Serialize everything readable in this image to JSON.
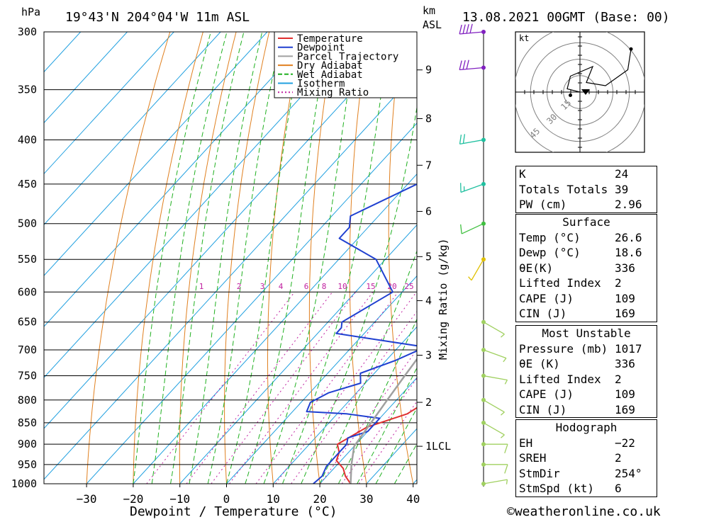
{
  "header": {
    "location": "19°43'N  204°04'W  11m  ASL",
    "datetime": "13.08.2021  00GMT  (Base: 00)",
    "pressure_unit": "hPa",
    "height_unit_1": "km",
    "height_unit_2": "ASL"
  },
  "chart_data": {
    "type": "line",
    "title": "",
    "xlabel": "Dewpoint / Temperature (°C)",
    "ylabel": "hPa",
    "right_axis_label": "Mixing Ratio (g/kg)",
    "xlim": [
      -40,
      40
    ],
    "ylim": [
      1000,
      300
    ],
    "x_ticks": [
      -30,
      -20,
      -10,
      0,
      10,
      20,
      30,
      40
    ],
    "x_tick_labels": [
      "−30",
      "−20",
      "−10",
      "0",
      "10",
      "20",
      "30",
      "40"
    ],
    "pressure_levels": [
      300,
      350,
      400,
      450,
      500,
      550,
      600,
      650,
      700,
      750,
      800,
      850,
      900,
      950,
      1000
    ],
    "height_ticks_km": [
      {
        "label": "9",
        "p": 332
      },
      {
        "label": "8",
        "p": 378
      },
      {
        "label": "7",
        "p": 428
      },
      {
        "label": "6",
        "p": 484
      },
      {
        "label": "5",
        "p": 546
      },
      {
        "label": "4",
        "p": 614
      },
      {
        "label": "3",
        "p": 710
      },
      {
        "label": "2",
        "p": 805
      },
      {
        "label": "1LCL",
        "p": 905
      }
    ],
    "mixing_ratio_labels": [
      "1",
      "2",
      "3",
      "4",
      "6",
      "8",
      "10",
      "15",
      "20",
      "25"
    ],
    "mixing_ratio_values": [
      1,
      2,
      3,
      4,
      6,
      8,
      10,
      15,
      20,
      25
    ],
    "legend": [
      "Temperature",
      "Dewpoint",
      "Parcel Trajectory",
      "Dry Adiabat",
      "Wet Adiabat",
      "Isotherm",
      "Mixing Ratio"
    ],
    "legend_position": "top-center",
    "colors": {
      "temperature": "#e03030",
      "dewpoint": "#2040d0",
      "parcel": "#a0a0a0",
      "dry_adiabat": "#e08020",
      "wet_adiabat": "#20b020",
      "isotherm": "#20a0e0",
      "mixing_ratio": "#c020a0"
    },
    "series": [
      {
        "name": "Temperature",
        "points": [
          [
            26.6,
            1000
          ],
          [
            24,
            980
          ],
          [
            22,
            960
          ],
          [
            19,
            940
          ],
          [
            18,
            920
          ],
          [
            16,
            900
          ],
          [
            19,
            860
          ],
          [
            25,
            830
          ],
          [
            26,
            815
          ],
          [
            27,
            800
          ],
          [
            24,
            780
          ],
          [
            21,
            750
          ],
          [
            18,
            720
          ],
          [
            17,
            700
          ],
          [
            18,
            675
          ],
          [
            20,
            650
          ],
          [
            17,
            620
          ],
          [
            14,
            600
          ],
          [
            11,
            570
          ],
          [
            10,
            545
          ],
          [
            10,
            520
          ],
          [
            15,
            505
          ],
          [
            16,
            480
          ],
          [
            14,
            460
          ],
          [
            13,
            440
          ],
          [
            13,
            420
          ],
          [
            12,
            400
          ],
          [
            10,
            370
          ],
          [
            8,
            345
          ],
          [
            6,
            320
          ],
          [
            4,
            300
          ]
        ]
      },
      {
        "name": "Dewpoint",
        "points": [
          [
            18.6,
            1000
          ],
          [
            19,
            980
          ],
          [
            18,
            955
          ],
          [
            18,
            930
          ],
          [
            18,
            900
          ],
          [
            17,
            885
          ],
          [
            20,
            870
          ],
          [
            20,
            840
          ],
          [
            12,
            830
          ],
          [
            3,
            825
          ],
          [
            2,
            805
          ],
          [
            4,
            785
          ],
          [
            9,
            765
          ],
          [
            7,
            745
          ],
          [
            12,
            720
          ],
          [
            15,
            700
          ],
          [
            16,
            695
          ],
          [
            -6,
            670
          ],
          [
            -6,
            660
          ],
          [
            -7,
            650
          ],
          [
            -2,
            600
          ],
          [
            -12,
            550
          ],
          [
            -24,
            520
          ],
          [
            -24,
            505
          ],
          [
            -26,
            490
          ],
          [
            -18,
            450
          ],
          [
            -18,
            430
          ],
          [
            -18,
            410
          ],
          [
            -20,
            400
          ],
          [
            -9,
            385
          ],
          [
            -20,
            375
          ],
          [
            -6,
            350
          ],
          [
            -6,
            320
          ],
          [
            -10,
            300
          ]
        ]
      },
      {
        "name": "Parcel Trajectory",
        "points": [
          [
            26.6,
            1000
          ],
          [
            23,
            950
          ],
          [
            20,
            905
          ],
          [
            19,
            850
          ],
          [
            18,
            800
          ],
          [
            17,
            750
          ],
          [
            16,
            700
          ],
          [
            14,
            650
          ],
          [
            12,
            600
          ],
          [
            10,
            550
          ],
          [
            8,
            500
          ],
          [
            4,
            450
          ],
          [
            -1,
            400
          ],
          [
            -7,
            350
          ],
          [
            -14,
            300
          ]
        ]
      }
    ]
  },
  "hodograph": {
    "unit_label": "kt",
    "rings": [
      "15",
      "30",
      "45"
    ],
    "trace": [
      [
        0,
        0
      ],
      [
        -8,
        2
      ],
      [
        -6,
        10
      ],
      [
        8,
        16
      ],
      [
        4,
        6
      ],
      [
        16,
        4
      ],
      [
        30,
        14
      ],
      [
        32,
        27
      ]
    ],
    "storm_motion": [
      -6,
      -2
    ]
  },
  "indices": {
    "rows": [
      {
        "label": "K",
        "value": "24"
      },
      {
        "label": "Totals Totals",
        "value": "39"
      },
      {
        "label": "PW (cm)",
        "value": "2.96"
      }
    ]
  },
  "surface": {
    "title": "Surface",
    "rows": [
      {
        "label": "Temp (°C)",
        "value": "26.6"
      },
      {
        "label": "Dewp (°C)",
        "value": "18.6"
      },
      {
        "label": "θE(K)",
        "value": "336"
      },
      {
        "label": "Lifted Index",
        "value": "2"
      },
      {
        "label": "CAPE (J)",
        "value": "109"
      },
      {
        "label": "CIN (J)",
        "value": "169"
      }
    ]
  },
  "most_unstable": {
    "title": "Most Unstable",
    "rows": [
      {
        "label": "Pressure (mb)",
        "value": "1017"
      },
      {
        "label": "θE (K)",
        "value": "336"
      },
      {
        "label": "Lifted Index",
        "value": "2"
      },
      {
        "label": "CAPE (J)",
        "value": "109"
      },
      {
        "label": "CIN (J)",
        "value": "169"
      }
    ]
  },
  "hodograph_table": {
    "title": "Hodograph",
    "rows": [
      {
        "label": "EH",
        "value": "−22"
      },
      {
        "label": "SREH",
        "value": "2"
      },
      {
        "label": "StmDir",
        "value": "254°"
      },
      {
        "label": "StmSpd (kt)",
        "value": "6"
      }
    ]
  },
  "wind_profile": {
    "levels": [
      {
        "p": 300,
        "dir": 265,
        "spd": 40,
        "color": "#8020c0"
      },
      {
        "p": 330,
        "dir": 265,
        "spd": 30,
        "color": "#8020c0"
      },
      {
        "p": 400,
        "dir": 260,
        "spd": 20,
        "color": "#20c0a0"
      },
      {
        "p": 450,
        "dir": 250,
        "spd": 15,
        "color": "#20c0a0"
      },
      {
        "p": 500,
        "dir": 245,
        "spd": 10,
        "color": "#40c040"
      },
      {
        "p": 550,
        "dir": 210,
        "spd": 5,
        "color": "#e0c000"
      },
      {
        "p": 650,
        "dir": 120,
        "spd": 8,
        "color": "#a0d060"
      },
      {
        "p": 700,
        "dir": 110,
        "spd": 8,
        "color": "#a0d060"
      },
      {
        "p": 750,
        "dir": 100,
        "spd": 5,
        "color": "#a0d060"
      },
      {
        "p": 800,
        "dir": 120,
        "spd": 5,
        "color": "#a0d060"
      },
      {
        "p": 850,
        "dir": 120,
        "spd": 8,
        "color": "#a0d060"
      },
      {
        "p": 900,
        "dir": 90,
        "spd": 10,
        "color": "#a0d060"
      },
      {
        "p": 950,
        "dir": 90,
        "spd": 10,
        "color": "#a0d060"
      },
      {
        "p": 1000,
        "dir": 80,
        "spd": 5,
        "color": "#a0d060"
      }
    ]
  },
  "footer": {
    "copyright": "©weatheronline.co.uk"
  }
}
